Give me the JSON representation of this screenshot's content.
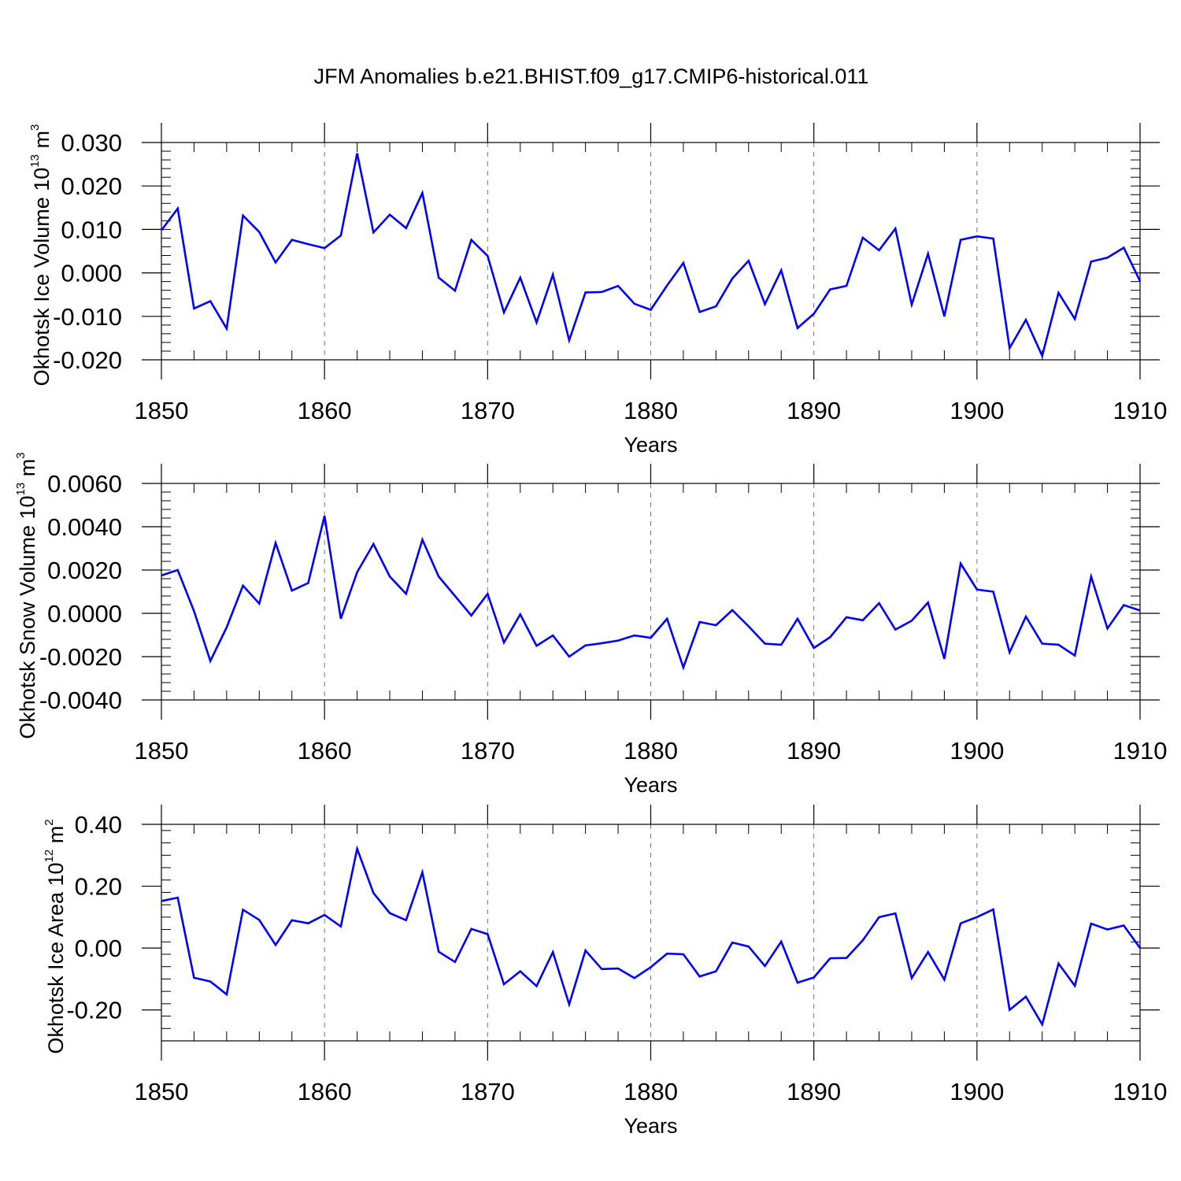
{
  "figure": {
    "title": "JFM Anomalies b.e21.BHIST.f09_g17.CMIP6-historical.011",
    "line_color": "#0000ff",
    "grid_color": "#777777"
  },
  "chart_data": [
    {
      "type": "line",
      "title": "",
      "xlabel": "Years",
      "ylabel": {
        "base": "Okhotsk Ice Volume 10",
        "exp": "13",
        "unit": " m",
        "unit_exp": "3"
      },
      "xlim": [
        1850,
        1910
      ],
      "ylim": [
        -0.02,
        0.03
      ],
      "yticks": [
        -0.02,
        -0.01,
        0.0,
        0.01,
        0.02,
        0.03
      ],
      "ytick_labels": [
        "-0.020",
        "-0.010",
        "0.000",
        "0.010",
        "0.020",
        "0.030"
      ],
      "xticks": [
        1850,
        1860,
        1870,
        1880,
        1890,
        1900,
        1910
      ],
      "xtick_labels": [
        "1850",
        "1860",
        "1870",
        "1880",
        "1890",
        "1900",
        "1910"
      ],
      "series": [
        {
          "x": [
            1850,
            1851,
            1852,
            1853,
            1854,
            1855,
            1856,
            1857,
            1858,
            1859,
            1860,
            1861,
            1862,
            1863,
            1864,
            1865,
            1866,
            1867,
            1868,
            1869,
            1870,
            1871,
            1872,
            1873,
            1874,
            1875,
            1876,
            1877,
            1878,
            1879,
            1880,
            1881,
            1882,
            1883,
            1884,
            1885,
            1886,
            1887,
            1888,
            1889,
            1890,
            1891,
            1892,
            1893,
            1894,
            1895,
            1896,
            1897,
            1898,
            1899,
            1900,
            1901,
            1902,
            1903,
            1904,
            1905,
            1906,
            1907,
            1908,
            1909,
            1910
          ],
          "y": [
            0.0098,
            0.0148,
            -0.0082,
            -0.0065,
            -0.0128,
            0.0132,
            0.0094,
            0.0024,
            0.0076,
            0.0066,
            0.0057,
            0.0086,
            0.0275,
            0.0093,
            0.0134,
            0.0103,
            0.0184,
            -0.0011,
            -0.0041,
            0.0076,
            0.0039,
            -0.0091,
            -0.0011,
            -0.0114,
            -0.0004,
            -0.0155,
            -0.0045,
            -0.0044,
            -0.003,
            -0.0071,
            -0.0085,
            -0.0029,
            0.0023,
            -0.009,
            -0.0077,
            -0.0013,
            0.0028,
            -0.0072,
            0.0006,
            -0.0127,
            -0.0094,
            -0.0038,
            -0.003,
            0.0081,
            0.0052,
            0.0102,
            -0.0073,
            0.0044,
            -0.01,
            0.0076,
            0.0084,
            0.0079,
            -0.0173,
            -0.0108,
            -0.0191,
            -0.0046,
            -0.0106,
            0.0026,
            0.0035,
            0.0058,
            -0.0019
          ]
        }
      ]
    },
    {
      "type": "line",
      "title": "",
      "xlabel": "Years",
      "ylabel": {
        "base": "Okhotsk Snow Volume 10",
        "exp": "13",
        "unit": " m",
        "unit_exp": "3"
      },
      "xlim": [
        1850,
        1910
      ],
      "ylim": [
        -0.004,
        0.006
      ],
      "yticks": [
        -0.004,
        -0.002,
        0.0,
        0.002,
        0.004,
        0.006
      ],
      "ytick_labels": [
        "-0.0040",
        "-0.0020",
        "0.0000",
        "0.0020",
        "0.0040",
        "0.0060"
      ],
      "xticks": [
        1850,
        1860,
        1870,
        1880,
        1890,
        1900,
        1910
      ],
      "xtick_labels": [
        "1850",
        "1860",
        "1870",
        "1880",
        "1890",
        "1900",
        "1910"
      ],
      "series": [
        {
          "x": [
            1850,
            1851,
            1852,
            1853,
            1854,
            1855,
            1856,
            1857,
            1858,
            1859,
            1860,
            1861,
            1862,
            1863,
            1864,
            1865,
            1866,
            1867,
            1868,
            1869,
            1870,
            1871,
            1872,
            1873,
            1874,
            1875,
            1876,
            1877,
            1878,
            1879,
            1880,
            1881,
            1882,
            1883,
            1884,
            1885,
            1886,
            1887,
            1888,
            1889,
            1890,
            1891,
            1892,
            1893,
            1894,
            1895,
            1896,
            1897,
            1898,
            1899,
            1900,
            1901,
            1902,
            1903,
            1904,
            1905,
            1906,
            1907,
            1908,
            1909,
            1910
          ],
          "y": [
            0.00175,
            0.002,
            0.0001,
            -0.0022,
            -0.00065,
            0.00128,
            0.00045,
            0.00325,
            0.00105,
            0.0014,
            0.0045,
            -0.00025,
            0.0019,
            0.0032,
            0.0017,
            0.0009,
            0.0034,
            0.0017,
            0.0008,
            -0.0001,
            0.0009,
            -0.00135,
            -5e-05,
            -0.0015,
            -0.00102,
            -0.002,
            -0.00148,
            -0.00138,
            -0.00126,
            -0.00102,
            -0.00113,
            -0.00025,
            -0.0025,
            -0.0004,
            -0.00055,
            0.00015,
            -0.0006,
            -0.0014,
            -0.00145,
            -0.00025,
            -0.0016,
            -0.0011,
            -0.00018,
            -0.00032,
            0.00047,
            -0.00075,
            -0.00034,
            0.0005,
            -0.0021,
            0.0023,
            0.0011,
            0.001,
            -0.0018,
            -0.00015,
            -0.0014,
            -0.00145,
            -0.00195,
            0.0017,
            -0.0007,
            0.00038,
            0.00013
          ]
        }
      ]
    },
    {
      "type": "line",
      "title": "",
      "xlabel": "Years",
      "ylabel": {
        "base": "Okhotsk Ice Area 10",
        "exp": "12",
        "unit": " m",
        "unit_exp": "2"
      },
      "xlim": [
        1850,
        1910
      ],
      "ylim": [
        -0.3,
        0.4
      ],
      "yticks": [
        -0.2,
        0.0,
        0.2,
        0.4
      ],
      "ytick_labels": [
        "-0.20",
        "0.00",
        "0.20",
        "0.40"
      ],
      "xticks": [
        1850,
        1860,
        1870,
        1880,
        1890,
        1900,
        1910
      ],
      "xtick_labels": [
        "1850",
        "1860",
        "1870",
        "1880",
        "1890",
        "1900",
        "1910"
      ],
      "series": [
        {
          "x": [
            1850,
            1851,
            1852,
            1853,
            1854,
            1855,
            1856,
            1857,
            1858,
            1859,
            1860,
            1861,
            1862,
            1863,
            1864,
            1865,
            1866,
            1867,
            1868,
            1869,
            1870,
            1871,
            1872,
            1873,
            1874,
            1875,
            1876,
            1877,
            1878,
            1879,
            1880,
            1881,
            1882,
            1883,
            1884,
            1885,
            1886,
            1887,
            1888,
            1889,
            1890,
            1891,
            1892,
            1893,
            1894,
            1895,
            1896,
            1897,
            1898,
            1899,
            1900,
            1901,
            1902,
            1903,
            1904,
            1905,
            1906,
            1907,
            1908,
            1909,
            1910
          ],
          "y": [
            0.152,
            0.163,
            -0.096,
            -0.108,
            -0.15,
            0.124,
            0.091,
            0.01,
            0.09,
            0.08,
            0.107,
            0.07,
            0.321,
            0.178,
            0.113,
            0.09,
            0.245,
            -0.012,
            -0.045,
            0.062,
            0.045,
            -0.117,
            -0.075,
            -0.123,
            -0.013,
            -0.182,
            -0.008,
            -0.068,
            -0.066,
            -0.097,
            -0.062,
            -0.018,
            -0.02,
            -0.092,
            -0.075,
            0.018,
            0.005,
            -0.058,
            0.021,
            -0.112,
            -0.095,
            -0.033,
            -0.032,
            0.025,
            0.1,
            0.112,
            -0.097,
            -0.013,
            -0.102,
            0.08,
            0.1,
            0.125,
            -0.2,
            -0.157,
            -0.247,
            -0.05,
            -0.122,
            0.079,
            0.06,
            0.073,
            0.0
          ]
        }
      ]
    }
  ]
}
